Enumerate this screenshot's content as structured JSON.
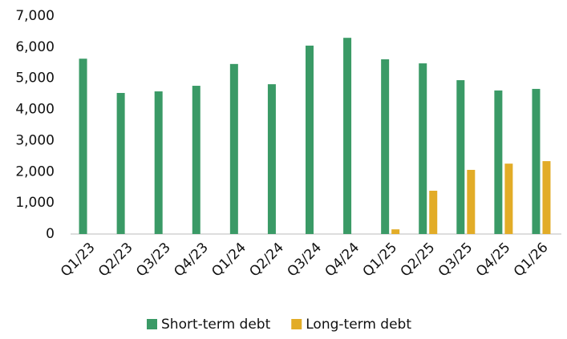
{
  "chart_data": {
    "type": "bar",
    "categories": [
      "Q1/23",
      "Q2/23",
      "Q3/23",
      "Q4/23",
      "Q1/24",
      "Q2/24",
      "Q3/24",
      "Q4/24",
      "Q1/25",
      "Q2/25",
      "Q3/25",
      "Q4/25",
      "Q1/26"
    ],
    "series": [
      {
        "name": "Short-term debt",
        "color": "#3a9a66",
        "values": [
          5630,
          4530,
          4580,
          4760,
          5460,
          4810,
          6050,
          6300,
          5610,
          5480,
          4940,
          4610,
          4660
        ]
      },
      {
        "name": "Long-term debt",
        "color": "#e2ac27",
        "values": [
          0,
          0,
          0,
          0,
          0,
          0,
          0,
          0,
          150,
          1390,
          2060,
          2260,
          2340
        ]
      }
    ],
    "ylim": [
      0,
      7000
    ],
    "yticks": [
      0,
      {
        "value": 1000,
        "label": "1,000"
      },
      {
        "value": 2000,
        "label": "2,000"
      },
      {
        "value": 3000,
        "label": "3,000"
      },
      {
        "value": 4000,
        "label": "4,000"
      },
      {
        "value": 5000,
        "label": "5,000"
      },
      {
        "value": 6000,
        "label": "6,000"
      },
      {
        "value": 7000,
        "label": "7,000"
      }
    ],
    "grid": false,
    "legend": "bottom"
  }
}
